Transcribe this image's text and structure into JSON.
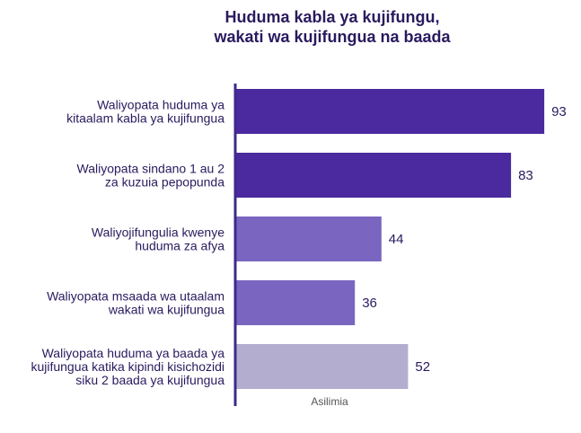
{
  "chart_data": {
    "type": "bar",
    "orientation": "horizontal",
    "title_lines": [
      "Huduma kabla ya kujifungu,",
      "wakati wa kujifungua na baada"
    ],
    "xlabel": "Asilimia",
    "xlim": [
      0,
      100
    ],
    "categories": [
      [
        "Waliyopata huduma ya",
        "kitaalam kabla ya kujifungua"
      ],
      [
        "Waliyopata sindano 1 au 2",
        "za kuzuia pepopunda"
      ],
      [
        "Waliyojifungulia kwenye",
        "huduma za afya"
      ],
      [
        "Waliyopata msaada wa utaalam",
        "wakati wa kujifungua"
      ],
      [
        "Waliyopata  huduma ya baada ya",
        "kujifungua katika kipindi kisichozidi",
        "siku 2 baada ya kujifungua"
      ]
    ],
    "values": [
      93,
      83,
      44,
      36,
      52
    ],
    "colors": [
      "#4a2a9e",
      "#4a2a9e",
      "#7a66c0",
      "#7a66c0",
      "#b3adcf"
    ],
    "axis_color": "#3d2a8a"
  }
}
